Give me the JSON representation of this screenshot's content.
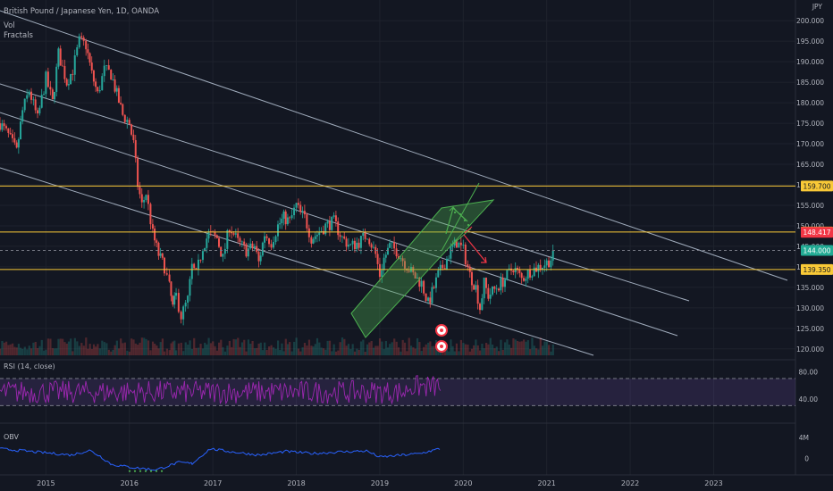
{
  "header": {
    "title": "British Pound / Japanese Yen, 1D, OANDA",
    "vol": "Vol",
    "fractals": "Fractals"
  },
  "chart_data": [
    {
      "type": "candlestick",
      "title": "British Pound / Japanese Yen, 1D, OANDA",
      "currency_label": "JPY",
      "x_ticks": [
        "2015",
        "2016",
        "2017",
        "2018",
        "2019",
        "2020",
        "2021",
        "2022",
        "2023"
      ],
      "y_ticks": [
        200,
        195,
        190,
        185,
        180,
        175,
        170,
        165,
        160,
        155,
        150,
        145,
        140,
        135,
        130,
        125,
        120
      ],
      "y_tick_labels": [
        "200.000",
        "195.000",
        "190.000",
        "185.000",
        "180.000",
        "175.000",
        "170.000",
        "165.000",
        "160.000",
        "155.000",
        "150.000",
        "145.000",
        "140.000",
        "135.000",
        "130.000",
        "125.000",
        "120.000"
      ],
      "ylim": [
        118,
        202
      ],
      "xlim": [
        2014.45,
        2023.98
      ],
      "series": [
        {
          "x": [
            2014.45,
            2014.55,
            2014.65,
            2014.72,
            2014.8,
            2014.9,
            2015.0,
            2015.08,
            2015.15,
            2015.25,
            2015.32,
            2015.4,
            2015.48,
            2015.55,
            2015.62,
            2015.7,
            2015.78,
            2015.85,
            2015.92,
            2016.0,
            2016.05,
            2016.1,
            2016.15,
            2016.2,
            2016.28,
            2016.35,
            2016.42,
            2016.48,
            2016.52,
            2016.56,
            2016.62,
            2016.7,
            2016.75,
            2016.8,
            2016.88,
            2016.95,
            2017.05,
            2017.12,
            2017.2,
            2017.3,
            2017.4,
            2017.5,
            2017.55,
            2017.62,
            2017.7,
            2017.78,
            2017.85,
            2017.92,
            2018.0,
            2018.05,
            2018.1,
            2018.18,
            2018.25,
            2018.35,
            2018.45,
            2018.55,
            2018.65,
            2018.75,
            2018.85,
            2018.95,
            2019.0,
            2019.05,
            2019.12,
            2019.2,
            2019.3,
            2019.4,
            2019.5,
            2019.58,
            2019.65,
            2019.7,
            2019.78,
            2019.85,
            2019.92,
            2020.0,
            2020.08,
            2020.15,
            2020.2,
            2020.25,
            2020.3,
            2020.4,
            2020.5,
            2020.6,
            2020.7,
            2020.8,
            2020.9,
            2021.0,
            2021.1
          ],
          "y": [
            175,
            172,
            168,
            178,
            183,
            176,
            186,
            180,
            192,
            185,
            188,
            195,
            194,
            187,
            182,
            188,
            187,
            182,
            177,
            175,
            170,
            160,
            155,
            158,
            148,
            143,
            140,
            135,
            130,
            133,
            128,
            132,
            140,
            138,
            145,
            148,
            147,
            142,
            150,
            146,
            144,
            145,
            141,
            148,
            146,
            150,
            152,
            151,
            155,
            153,
            152,
            147,
            148,
            150,
            151,
            147,
            145,
            146,
            148,
            143,
            138,
            142,
            145,
            144,
            141,
            138,
            136,
            131,
            135,
            138,
            141,
            144,
            146,
            144,
            138,
            135,
            130,
            136,
            133,
            135,
            137,
            140,
            137,
            139,
            140,
            141,
            143
          ]
        }
      ],
      "horizontal_levels": [
        {
          "label": "159.700",
          "value": 159.7,
          "color": "#f9c937",
          "text_color": "#131722"
        },
        {
          "label": "148.480",
          "value": 148.48,
          "color": "#f9c937",
          "text_color": "#131722"
        },
        {
          "label": "148.417",
          "value": 148.417,
          "color": "#f23645",
          "text_color": "#ffffff"
        },
        {
          "label": "144.000",
          "value": 144.0,
          "color": "#22ab94",
          "text_color": "#ffffff"
        },
        {
          "label": "139.350",
          "value": 139.35,
          "color": "#f9c937",
          "text_color": "#131722"
        }
      ],
      "trendlines_color": "#b8c5d6",
      "channel_color": "#4caf50",
      "bullish_arrow_color": "#4caf50",
      "bearish_arrow_color": "#f23645"
    },
    {
      "type": "line",
      "title": "RSI (14, close)",
      "y_tick_labels": [
        "80.00",
        "40.00"
      ],
      "y_ticks": [
        80,
        40
      ],
      "ylim": [
        20,
        95
      ],
      "band": [
        70,
        30
      ],
      "line_color": "#9c27b0"
    },
    {
      "type": "line",
      "title": "OBV",
      "y_tick_labels": [
        "4M",
        "0"
      ],
      "y_ticks": [
        4,
        0
      ],
      "ylim": [
        -2.5,
        6
      ],
      "line_color": "#2962ff"
    }
  ],
  "colors": {
    "background": "#131722",
    "grid": "#1e222d",
    "text": "#b2b5be",
    "up": "#26a69a",
    "down": "#ef5350"
  }
}
